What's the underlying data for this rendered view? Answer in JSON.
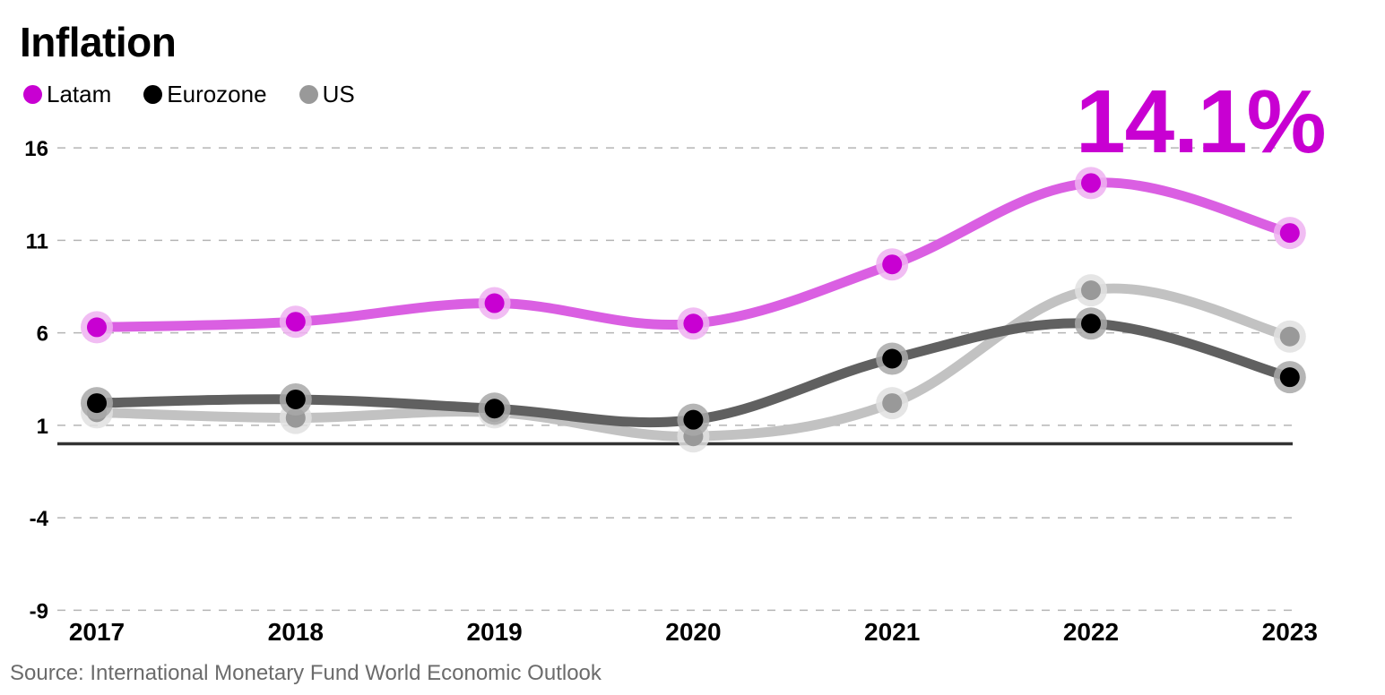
{
  "title": "Inflation",
  "source": "Source: International Monetary Fund World Economic Outlook",
  "callout": {
    "text": "14.1%",
    "color": "#c800d2"
  },
  "legend": [
    {
      "label": "Latam",
      "color": "#c800d2"
    },
    {
      "label": "Eurozone",
      "color": "#000000"
    },
    {
      "label": "US",
      "color": "#999999"
    }
  ],
  "chart_data": {
    "type": "line",
    "title": "Inflation",
    "xlabel": "",
    "ylabel": "",
    "categories": [
      "2017",
      "2018",
      "2019",
      "2020",
      "2021",
      "2022",
      "2023"
    ],
    "ylim": [
      -9,
      16
    ],
    "yticks": [
      16,
      11,
      6,
      1,
      -4,
      -9
    ],
    "baseline": 0,
    "grid": "horizontal dashed",
    "legend_position": "top-left",
    "series": [
      {
        "name": "Latam",
        "color": "#c800d2",
        "line_color": "#da5fe2",
        "halo_color": "#eeb2f1",
        "values": [
          6.3,
          6.6,
          7.6,
          6.5,
          9.7,
          14.1,
          11.4
        ]
      },
      {
        "name": "Eurozone",
        "color": "#000000",
        "line_color": "#606060",
        "halo_color": "#a8a8a8",
        "values": [
          2.2,
          2.4,
          1.9,
          1.3,
          4.6,
          6.5,
          3.6
        ]
      },
      {
        "name": "US",
        "color": "#999999",
        "line_color": "#c2c2c2",
        "halo_color": "#e0e0e0",
        "values": [
          1.7,
          1.4,
          1.7,
          0.4,
          2.2,
          8.3,
          5.8
        ]
      }
    ],
    "annotations": [
      {
        "text": "14.1%",
        "series": "Latam",
        "category": "2022"
      }
    ]
  }
}
